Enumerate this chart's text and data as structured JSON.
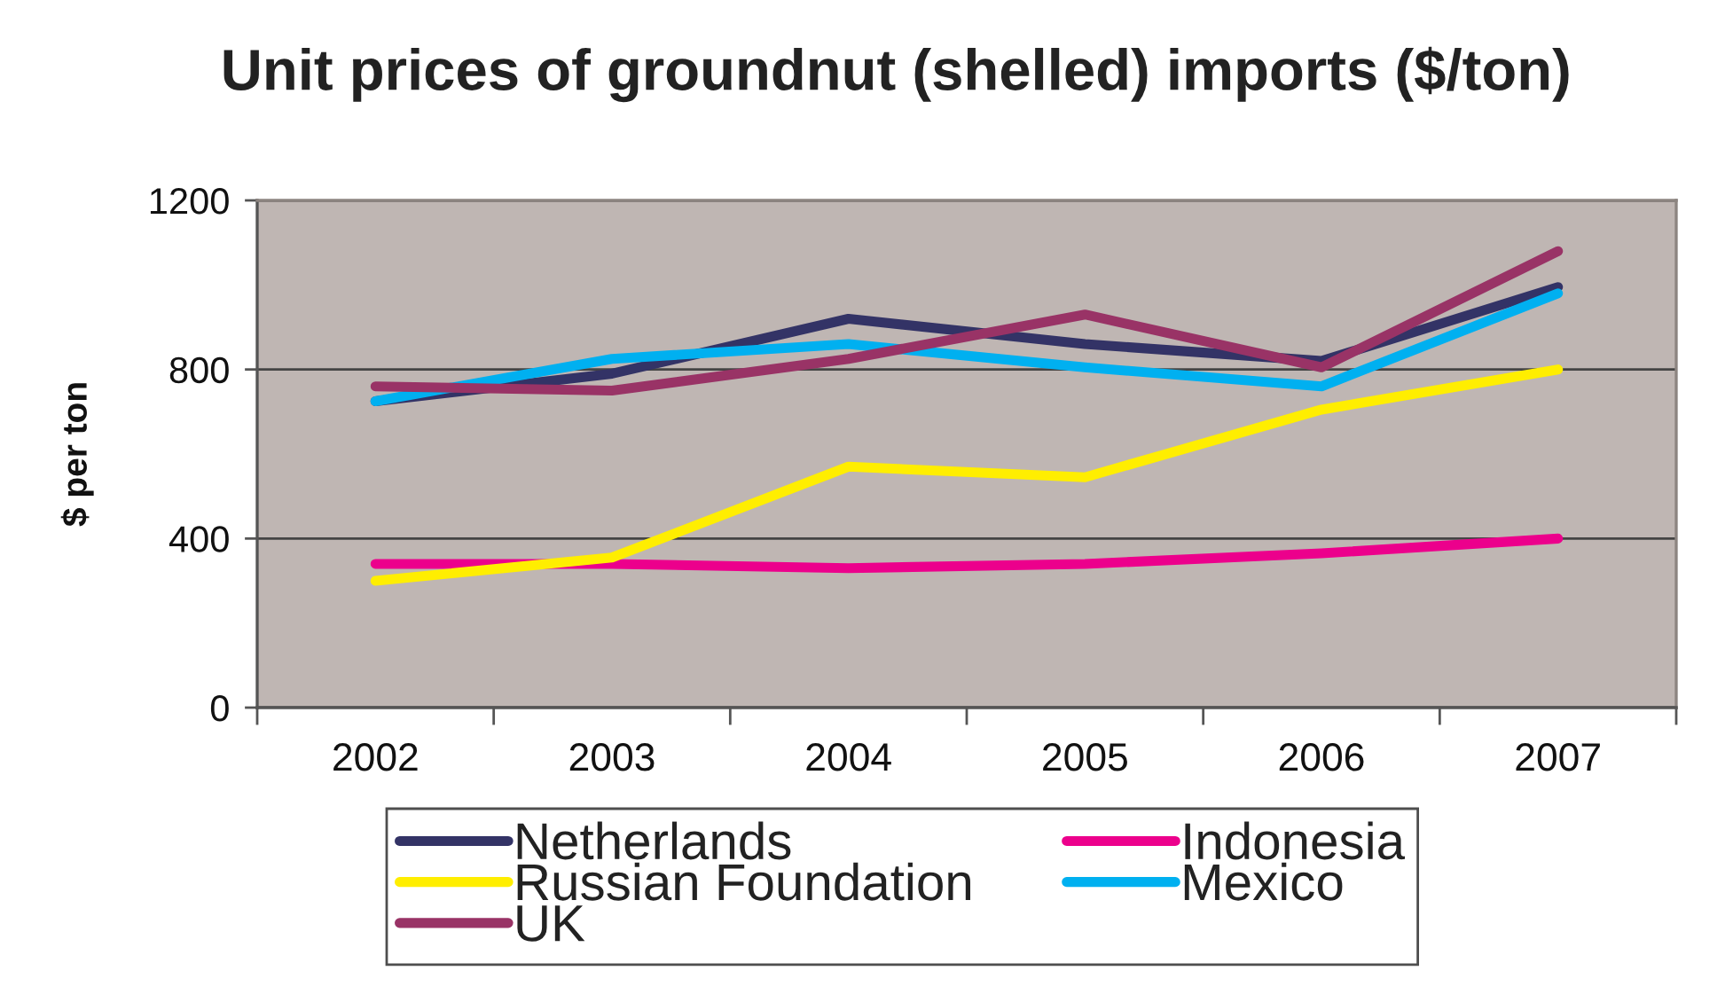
{
  "chart_data": {
    "type": "line",
    "title": "Unit prices of groundnut (shelled) imports ($/ton)",
    "ylabel": "$ per ton",
    "categories": [
      "2002",
      "2003",
      "2004",
      "2005",
      "2006",
      "2007"
    ],
    "ylim": [
      0,
      1200
    ],
    "yticks": [
      0,
      400,
      800,
      1200
    ],
    "grid": "y",
    "legend": "bottom",
    "series": [
      {
        "name": "Netherlands",
        "color": "#333366",
        "values": [
          725,
          790,
          920,
          860,
          820,
          995
        ]
      },
      {
        "name": "Indonesia",
        "color": "#ec008c",
        "values": [
          340,
          340,
          330,
          340,
          365,
          400
        ]
      },
      {
        "name": "Russian Foundation",
        "color": "#ffee00",
        "values": [
          300,
          355,
          570,
          545,
          705,
          800
        ]
      },
      {
        "name": "Mexico",
        "color": "#00b0f0",
        "values": [
          725,
          825,
          860,
          805,
          760,
          980
        ]
      },
      {
        "name": "UK",
        "color": "#993366",
        "values": [
          760,
          750,
          825,
          930,
          805,
          1080
        ]
      }
    ]
  }
}
